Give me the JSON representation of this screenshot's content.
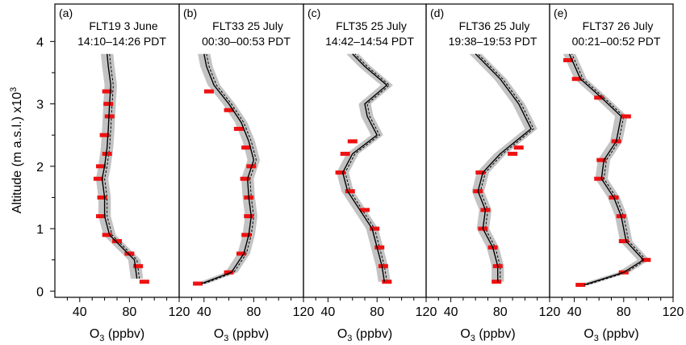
{
  "figure": {
    "y_axis_label": "Altitude (m a.s.l.) x10",
    "y_axis_exponent": "3",
    "colors": {
      "observed": "#ee1111",
      "model_band": "#bdbdbd",
      "model_line": "#000000"
    }
  },
  "chart_data": [
    {
      "type": "line",
      "panel_letter": "(a)",
      "flight": "FLT19 3 June",
      "time": "14:10–14:26 PDT",
      "xlabel": "O3 (ppbv)",
      "ylabel": "Altitude (m a.s.l.) x10^3",
      "xlim": [
        20,
        120
      ],
      "ylim": [
        -0.1,
        4.6
      ],
      "x_ticks": [
        "40",
        "80",
        "120"
      ],
      "y_ticks": [
        "0",
        "1",
        "2",
        "3",
        "4"
      ],
      "observed_o3": {
        "altitude": [
          0.15,
          0.4,
          0.6,
          0.8,
          0.9,
          1.2,
          1.5,
          1.8,
          2.0,
          2.2,
          2.5,
          2.8,
          3.0,
          3.2
        ],
        "o3": [
          92,
          87,
          80,
          70,
          62,
          57,
          58,
          55,
          57,
          62,
          60,
          64,
          63,
          62
        ]
      },
      "model_o3": {
        "altitude": [
          0.2,
          0.5,
          0.7,
          0.9,
          1.2,
          1.5,
          1.8,
          2.0,
          2.3,
          2.6,
          3.0,
          3.3,
          3.6,
          3.8
        ],
        "o3": [
          86,
          84,
          74,
          64,
          60,
          60,
          58,
          60,
          62,
          63,
          64,
          65,
          63,
          62
        ]
      }
    },
    {
      "type": "line",
      "panel_letter": "(b)",
      "flight": "FLT33 25 July",
      "time": "00:30–00:53 PDT",
      "xlabel": "O3 (ppbv)",
      "ylabel": "",
      "xlim": [
        20,
        120
      ],
      "ylim": [
        -0.1,
        4.6
      ],
      "x_ticks": [
        "40",
        "80",
        "120"
      ],
      "y_ticks": [],
      "observed_o3": {
        "altitude": [
          0.12,
          0.3,
          0.6,
          0.9,
          1.2,
          1.5,
          1.8,
          2.0,
          2.3,
          2.6,
          2.9,
          3.2
        ],
        "o3": [
          35,
          60,
          70,
          74,
          76,
          76,
          73,
          78,
          74,
          68,
          60,
          44
        ]
      },
      "model_o3": {
        "altitude": [
          0.12,
          0.3,
          0.6,
          0.9,
          1.2,
          1.5,
          1.8,
          2.1,
          2.4,
          2.7,
          3.0,
          3.3,
          3.6,
          3.8
        ],
        "o3": [
          38,
          62,
          72,
          76,
          78,
          76,
          75,
          80,
          76,
          70,
          60,
          48,
          42,
          40
        ]
      }
    },
    {
      "type": "line",
      "panel_letter": "(c)",
      "flight": "FLT35 25 July",
      "time": "14:42–14:54 PDT",
      "xlabel": "O3 (ppbv)",
      "ylabel": "",
      "xlim": [
        20,
        120
      ],
      "ylim": [
        -0.1,
        4.6
      ],
      "x_ticks": [
        "40",
        "80",
        "120"
      ],
      "y_ticks": [],
      "observed_o3": {
        "altitude": [
          0.15,
          0.4,
          0.7,
          1.0,
          1.3,
          1.6,
          1.9,
          2.2,
          2.4
        ],
        "o3": [
          88,
          85,
          82,
          78,
          70,
          58,
          50,
          54,
          60
        ]
      },
      "model_o3": {
        "altitude": [
          0.15,
          0.4,
          0.7,
          1.0,
          1.3,
          1.6,
          1.9,
          2.2,
          2.5,
          2.8,
          3.0,
          3.3,
          3.6,
          3.8
        ],
        "o3": [
          86,
          84,
          80,
          76,
          66,
          56,
          52,
          60,
          80,
          72,
          70,
          88,
          70,
          60
        ]
      }
    },
    {
      "type": "line",
      "panel_letter": "(d)",
      "flight": "FLT36 25 July",
      "time": "19:38–19:53 PDT",
      "xlabel": "O3 (ppbv)",
      "ylabel": "",
      "xlim": [
        20,
        120
      ],
      "ylim": [
        -0.1,
        4.6
      ],
      "x_ticks": [
        "40",
        "80",
        "120"
      ],
      "y_ticks": [],
      "observed_o3": {
        "altitude": [
          0.15,
          0.4,
          0.7,
          1.0,
          1.3,
          1.6,
          1.9,
          2.2,
          2.3
        ],
        "o3": [
          77,
          78,
          74,
          66,
          68,
          62,
          64,
          90,
          95
        ]
      },
      "model_o3": {
        "altitude": [
          0.15,
          0.4,
          0.7,
          1.0,
          1.3,
          1.6,
          1.9,
          2.2,
          2.6,
          3.0,
          3.4,
          3.8
        ],
        "o3": [
          78,
          78,
          74,
          66,
          68,
          62,
          66,
          80,
          105,
          95,
          80,
          60
        ]
      }
    },
    {
      "type": "line",
      "panel_letter": "(e)",
      "flight": "FLT37 26 July",
      "time": "00:21–00:52 PDT",
      "xlabel": "O3 (ppbv)",
      "ylabel": "",
      "xlim": [
        20,
        120
      ],
      "ylim": [
        -0.1,
        4.6
      ],
      "x_ticks": [
        "40",
        "80",
        "120"
      ],
      "y_ticks": [],
      "observed_o3": {
        "altitude": [
          0.1,
          0.3,
          0.5,
          0.8,
          1.2,
          1.5,
          1.8,
          2.1,
          2.4,
          2.8,
          3.1,
          3.4,
          3.7
        ],
        "o3": [
          45,
          80,
          98,
          80,
          78,
          72,
          60,
          62,
          74,
          82,
          60,
          42,
          35
        ]
      },
      "model_o3": {
        "altitude": [
          0.1,
          0.3,
          0.5,
          0.8,
          1.2,
          1.5,
          1.8,
          2.1,
          2.4,
          2.8,
          3.1,
          3.4,
          3.8
        ],
        "o3": [
          48,
          80,
          96,
          82,
          78,
          72,
          62,
          64,
          74,
          78,
          62,
          45,
          36
        ]
      }
    }
  ]
}
